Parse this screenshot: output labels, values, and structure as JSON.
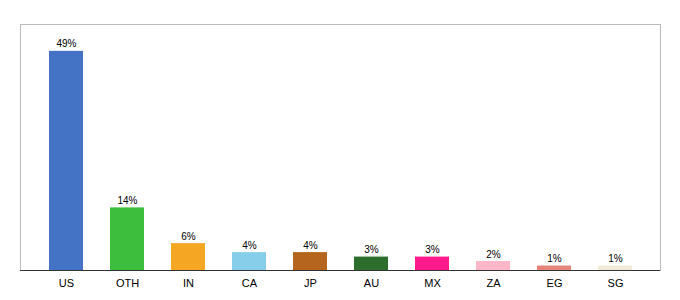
{
  "chart_data": {
    "type": "bar",
    "categories": [
      "US",
      "OTH",
      "IN",
      "CA",
      "JP",
      "AU",
      "MX",
      "ZA",
      "EG",
      "SG"
    ],
    "values": [
      49,
      14,
      6,
      4,
      4,
      3,
      3,
      2,
      1,
      1
    ],
    "value_labels": [
      "49%",
      "14%",
      "6%",
      "4%",
      "4%",
      "3%",
      "3%",
      "2%",
      "1%",
      "1%"
    ],
    "colors": [
      "#4472c4",
      "#3dbf3d",
      "#f5a623",
      "#87ceeb",
      "#b5651d",
      "#2d6e2d",
      "#ff1a8c",
      "#ffb6c8",
      "#e8857a",
      "#f0ead6"
    ],
    "ylim": [
      0,
      55
    ],
    "data_labels": true,
    "tick_labels": "x",
    "grid": false
  }
}
